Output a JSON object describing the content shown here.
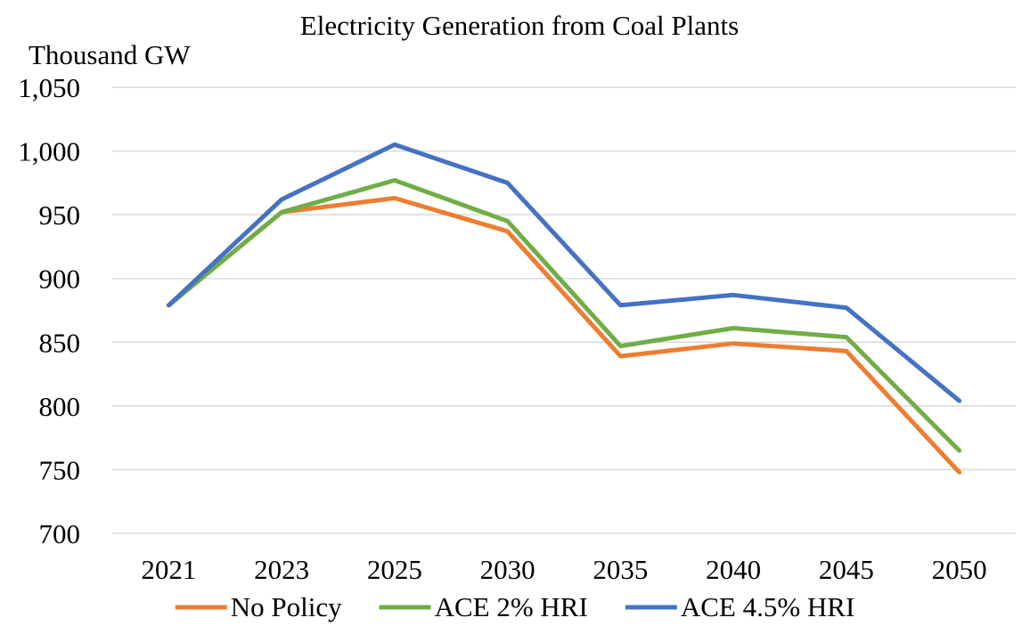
{
  "chart_data": {
    "type": "line",
    "title": "Electricity Generation from Coal Plants",
    "ylabel": "Thousand GW",
    "xlabel": "",
    "categories": [
      "2021",
      "2023",
      "2025",
      "2030",
      "2035",
      "2040",
      "2045",
      "2050"
    ],
    "ylim": [
      700,
      1050
    ],
    "ytick_step": 50,
    "ytick_labels": [
      "700",
      "750",
      "800",
      "850",
      "900",
      "950",
      "1,000",
      "1,050"
    ],
    "grid": true,
    "legend_position": "bottom",
    "series": [
      {
        "name": "No Policy",
        "color": "#ED7D31",
        "values": [
          879,
          952,
          963,
          937,
          839,
          849,
          843,
          748
        ]
      },
      {
        "name": "ACE 2% HRI",
        "color": "#70AD47",
        "values": [
          879,
          952,
          977,
          945,
          847,
          861,
          854,
          765
        ]
      },
      {
        "name": "ACE 4.5% HRI",
        "color": "#4472C4",
        "values": [
          879,
          962,
          1005,
          975,
          879,
          887,
          877,
          804
        ]
      }
    ]
  }
}
